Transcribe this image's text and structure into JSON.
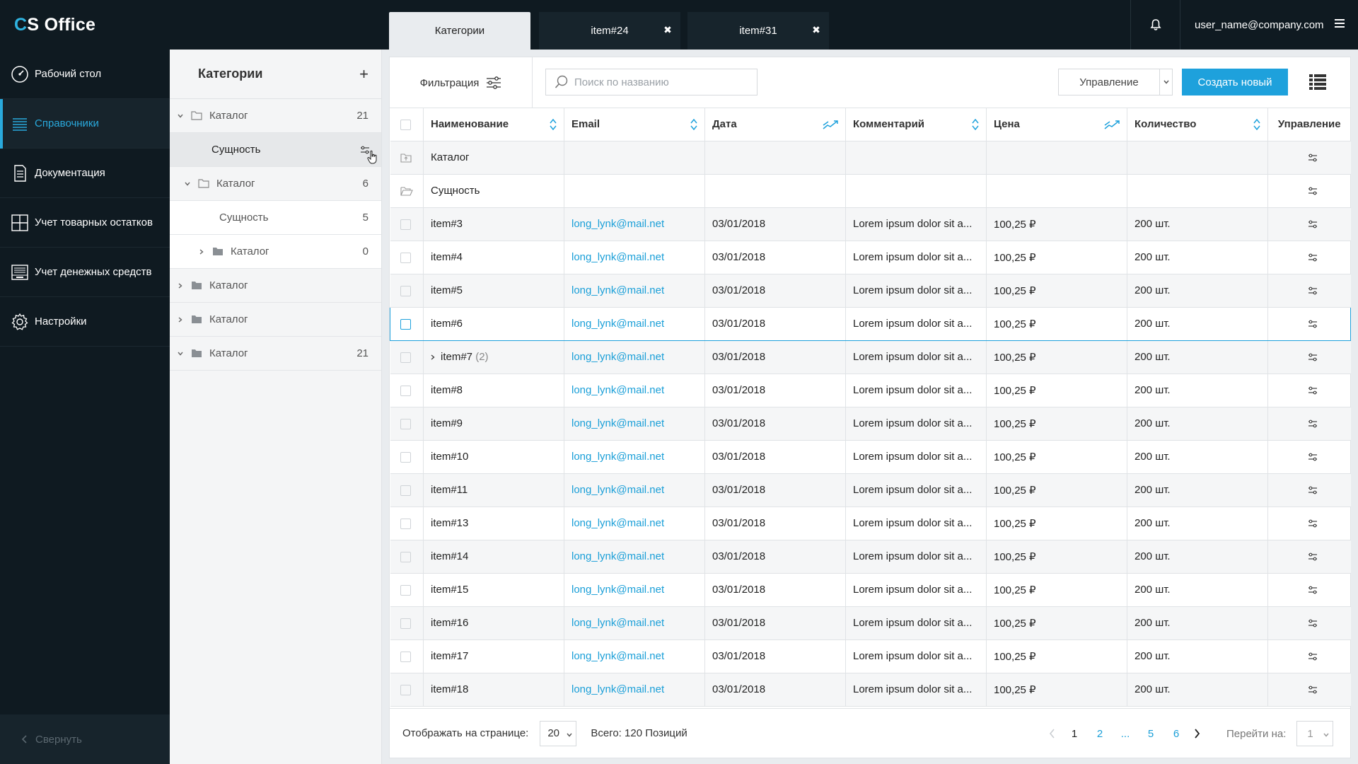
{
  "app": {
    "brand_c": "C",
    "brand_rest": "S Office"
  },
  "tabs": [
    {
      "label": "Категории",
      "active": true,
      "closable": false
    },
    {
      "label": "item#24",
      "active": false,
      "closable": true
    },
    {
      "label": "item#31",
      "active": false,
      "closable": true
    }
  ],
  "user": {
    "email": "user_name@company.com"
  },
  "nav": {
    "items": [
      {
        "label": "Рабочий стол",
        "icon": "dashboard-icon"
      },
      {
        "label": "Справочники",
        "icon": "list-icon",
        "active": true
      },
      {
        "label": "Документация",
        "icon": "document-icon"
      },
      {
        "label": "Учет товарных остатков",
        "icon": "grid-icon"
      },
      {
        "label": "Учет денежных средств",
        "icon": "cash-register-icon"
      },
      {
        "label": "Настройки",
        "icon": "gear-icon"
      }
    ],
    "collapse_label": "Свернуть"
  },
  "categories": {
    "title": "Категории",
    "add_symbol": "+",
    "tree": [
      {
        "label": "Каталог",
        "count": "21",
        "expanded": true,
        "folder": "outline"
      },
      {
        "label": "Сущность",
        "count": "",
        "leaf": true,
        "selected": true
      },
      {
        "label": "Каталог",
        "count": "6",
        "expanded": true,
        "folder": "outline"
      },
      {
        "label": "Сущность",
        "count": "5",
        "leaf": true
      },
      {
        "label": "Каталог",
        "count": "0",
        "expanded": false,
        "folder": "filled"
      },
      {
        "label": "Каталог",
        "count": "",
        "expanded": false,
        "folder": "filled"
      },
      {
        "label": "Каталог",
        "count": "",
        "expanded": false,
        "folder": "filled"
      },
      {
        "label": "Каталог",
        "count": "21",
        "expanded": true,
        "folder": "filled"
      }
    ]
  },
  "toolbar": {
    "filter_label": "Фильтрация",
    "search_placeholder": "Поиск по названию",
    "manage_label": "Управление",
    "create_label": "Создать новый"
  },
  "table": {
    "columns": [
      "Наименование",
      "Email",
      "Дата",
      "Комментарий",
      "Цена",
      "Количество",
      "Управление"
    ],
    "special_rows": [
      {
        "name": "Каталог",
        "icon": "folder-up-icon"
      },
      {
        "name": "Сущность",
        "icon": "folder-open-icon"
      }
    ],
    "rows": [
      {
        "name": "item#3",
        "email": "long_lynk@mail.net",
        "date": "03/01/2018",
        "comment": "Lorem ipsum dolor sit a...",
        "price": "100,25 ₽",
        "qty": "200 шт."
      },
      {
        "name": "item#4",
        "email": "long_lynk@mail.net",
        "date": "03/01/2018",
        "comment": "Lorem ipsum dolor sit a...",
        "price": "100,25 ₽",
        "qty": "200 шт."
      },
      {
        "name": "item#5",
        "email": "long_lynk@mail.net",
        "date": "03/01/2018",
        "comment": "Lorem ipsum dolor sit a...",
        "price": "100,25 ₽",
        "qty": "200 шт."
      },
      {
        "name": "item#6",
        "email": "long_lynk@mail.net",
        "date": "03/01/2018",
        "comment": "Lorem ipsum dolor sit a...",
        "price": "100,25 ₽",
        "qty": "200 шт.",
        "highlight": true
      },
      {
        "name": "item#7",
        "children": "(2)",
        "email": "long_lynk@mail.net",
        "date": "03/01/2018",
        "comment": "Lorem ipsum dolor sit a...",
        "price": "100,25 ₽",
        "qty": "200 шт."
      },
      {
        "name": "item#8",
        "email": "long_lynk@mail.net",
        "date": "03/01/2018",
        "comment": "Lorem ipsum dolor sit a...",
        "price": "100,25 ₽",
        "qty": "200 шт."
      },
      {
        "name": "item#9",
        "email": "long_lynk@mail.net",
        "date": "03/01/2018",
        "comment": "Lorem ipsum dolor sit a...",
        "price": "100,25 ₽",
        "qty": "200 шт."
      },
      {
        "name": "item#10",
        "email": "long_lynk@mail.net",
        "date": "03/01/2018",
        "comment": "Lorem ipsum dolor sit a...",
        "price": "100,25 ₽",
        "qty": "200 шт."
      },
      {
        "name": "item#11",
        "email": "long_lynk@mail.net",
        "date": "03/01/2018",
        "comment": "Lorem ipsum dolor sit a...",
        "price": "100,25 ₽",
        "qty": "200 шт."
      },
      {
        "name": "item#13",
        "email": "long_lynk@mail.net",
        "date": "03/01/2018",
        "comment": "Lorem ipsum dolor sit a...",
        "price": "100,25 ₽",
        "qty": "200 шт."
      },
      {
        "name": "item#14",
        "email": "long_lynk@mail.net",
        "date": "03/01/2018",
        "comment": "Lorem ipsum dolor sit a...",
        "price": "100,25 ₽",
        "qty": "200 шт."
      },
      {
        "name": "item#15",
        "email": "long_lynk@mail.net",
        "date": "03/01/2018",
        "comment": "Lorem ipsum dolor sit a...",
        "price": "100,25 ₽",
        "qty": "200 шт."
      },
      {
        "name": "item#16",
        "email": "long_lynk@mail.net",
        "date": "03/01/2018",
        "comment": "Lorem ipsum dolor sit a...",
        "price": "100,25 ₽",
        "qty": "200 шт."
      },
      {
        "name": "item#17",
        "email": "long_lynk@mail.net",
        "date": "03/01/2018",
        "comment": "Lorem ipsum dolor sit a...",
        "price": "100,25 ₽",
        "qty": "200 шт."
      },
      {
        "name": "item#18",
        "email": "long_lynk@mail.net",
        "date": "03/01/2018",
        "comment": "Lorem ipsum dolor sit a...",
        "price": "100,25 ₽",
        "qty": "200 шт."
      }
    ]
  },
  "pagination": {
    "per_page_label": "Отображать на странице:",
    "per_page_value": "20",
    "total_label": "Всего: 120 Позиций",
    "pages": [
      "1",
      "2",
      "...",
      "5",
      "6"
    ],
    "current": "1",
    "goto_label": "Перейти на:",
    "goto_value": "1"
  },
  "colors": {
    "accent": "#1ea1dc",
    "sidebar_bg": "#0f1a21",
    "active_nav": "#29a9dc"
  }
}
